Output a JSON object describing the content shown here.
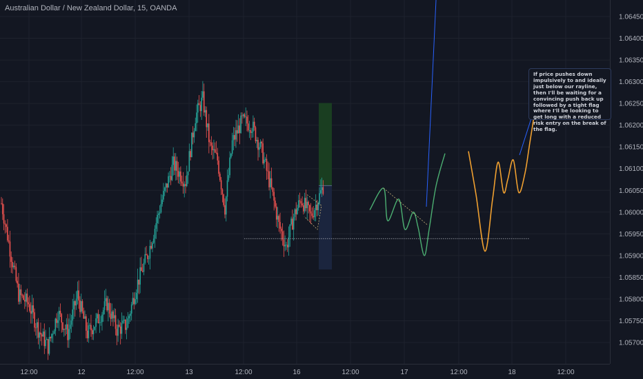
{
  "chart_title": "Australian Dollar / New Zealand Dollar, 15, OANDA",
  "annotation": "If price pushes down impulsively to and ideally just below our rayline, then I'll be waiting for a convincing push back up followed by a tight flag where I'll be looking to get long with a reduced risk entry on the break of the flag.",
  "colors": {
    "background": "#131722",
    "grid": "#1e222d",
    "up_candle": "#26a69a",
    "down_candle": "#ef5350",
    "projection_green": "#4caf72",
    "projection_orange": "#f0a030",
    "profit_zone": "#1a4022",
    "risk_zone": "#1b2640",
    "ray_line": "#b0b3ba",
    "axis_text": "#b2b5be"
  },
  "chart_data": {
    "type": "candlestick",
    "title": "Australian Dollar / New Zealand Dollar, 15, OANDA",
    "y_axis": {
      "position": "right",
      "range": [
        1.0565,
        1.0649
      ],
      "ticks": [
        "1.06450",
        "1.06400",
        "1.06350",
        "1.06300",
        "1.06250",
        "1.06200",
        "1.06150",
        "1.06100",
        "1.06050",
        "1.06000",
        "1.05950",
        "1.05900",
        "1.05850",
        "1.05800",
        "1.05750",
        "1.05700"
      ]
    },
    "x_axis": {
      "ticks": [
        "12:00",
        "12",
        "12:00",
        "13",
        "12:00",
        "16",
        "12:00",
        "17",
        "12:00",
        "18",
        "12:00"
      ]
    },
    "price_keypoints": [
      {
        "t": 0,
        "p": 1.0602
      },
      {
        "t": 6,
        "p": 1.0593
      },
      {
        "t": 14,
        "p": 1.0581
      },
      {
        "t": 22,
        "p": 1.0579
      },
      {
        "t": 30,
        "p": 1.0573
      },
      {
        "t": 38,
        "p": 1.0569
      },
      {
        "t": 46,
        "p": 1.0577
      },
      {
        "t": 54,
        "p": 1.0572
      },
      {
        "t": 62,
        "p": 1.0581
      },
      {
        "t": 70,
        "p": 1.0572
      },
      {
        "t": 78,
        "p": 1.0575
      },
      {
        "t": 86,
        "p": 1.0579
      },
      {
        "t": 94,
        "p": 1.0573
      },
      {
        "t": 102,
        "p": 1.0574
      },
      {
        "t": 110,
        "p": 1.0583
      },
      {
        "t": 120,
        "p": 1.0591
      },
      {
        "t": 130,
        "p": 1.0602
      },
      {
        "t": 140,
        "p": 1.0611
      },
      {
        "t": 150,
        "p": 1.0607
      },
      {
        "t": 158,
        "p": 1.0622
      },
      {
        "t": 164,
        "p": 1.0626
      },
      {
        "t": 170,
        "p": 1.0615
      },
      {
        "t": 176,
        "p": 1.0612
      },
      {
        "t": 182,
        "p": 1.0601
      },
      {
        "t": 188,
        "p": 1.0616
      },
      {
        "t": 196,
        "p": 1.0621
      },
      {
        "t": 204,
        "p": 1.062
      },
      {
        "t": 212,
        "p": 1.0614
      },
      {
        "t": 220,
        "p": 1.0605
      },
      {
        "t": 226,
        "p": 1.0597
      },
      {
        "t": 232,
        "p": 1.0592
      },
      {
        "t": 238,
        "p": 1.0599
      },
      {
        "t": 244,
        "p": 1.0603
      },
      {
        "t": 252,
        "p": 1.0599
      },
      {
        "t": 258,
        "p": 1.0603
      },
      {
        "t": 262,
        "p": 1.0606
      }
    ],
    "volatility": 0.00024,
    "ray_line": {
      "price": 1.05939,
      "label": "rayline"
    },
    "position_tool": {
      "entry": 1.06061,
      "target": 1.06251,
      "stop": 1.05868
    },
    "green_projection": [
      {
        "x": 536,
        "p": 1.06005
      },
      {
        "x": 556,
        "p": 1.06055
      },
      {
        "x": 562,
        "p": 1.0598
      },
      {
        "x": 578,
        "p": 1.0603
      },
      {
        "x": 587,
        "p": 1.0596
      },
      {
        "x": 599,
        "p": 1.06
      },
      {
        "x": 606,
        "p": 1.05965
      },
      {
        "x": 615,
        "p": 1.059
      },
      {
        "x": 622,
        "p": 1.0596
      },
      {
        "x": 632,
        "p": 1.0606
      },
      {
        "x": 645,
        "p": 1.06135
      }
    ],
    "green_flag": [
      {
        "x": 556,
        "p": 1.06055
      },
      {
        "x": 620,
        "p": 1.0597
      }
    ],
    "orange_projection": [
      {
        "x": 679,
        "p": 1.0614
      },
      {
        "x": 690,
        "p": 1.0604
      },
      {
        "x": 703,
        "p": 1.0591
      },
      {
        "x": 714,
        "p": 1.0603
      },
      {
        "x": 722,
        "p": 1.06115
      },
      {
        "x": 730,
        "p": 1.06045
      },
      {
        "x": 736,
        "p": 1.06075
      },
      {
        "x": 744,
        "p": 1.0612
      },
      {
        "x": 752,
        "p": 1.06045
      },
      {
        "x": 761,
        "p": 1.0609
      },
      {
        "x": 768,
        "p": 1.0616
      },
      {
        "x": 778,
        "p": 1.0626
      }
    ]
  }
}
